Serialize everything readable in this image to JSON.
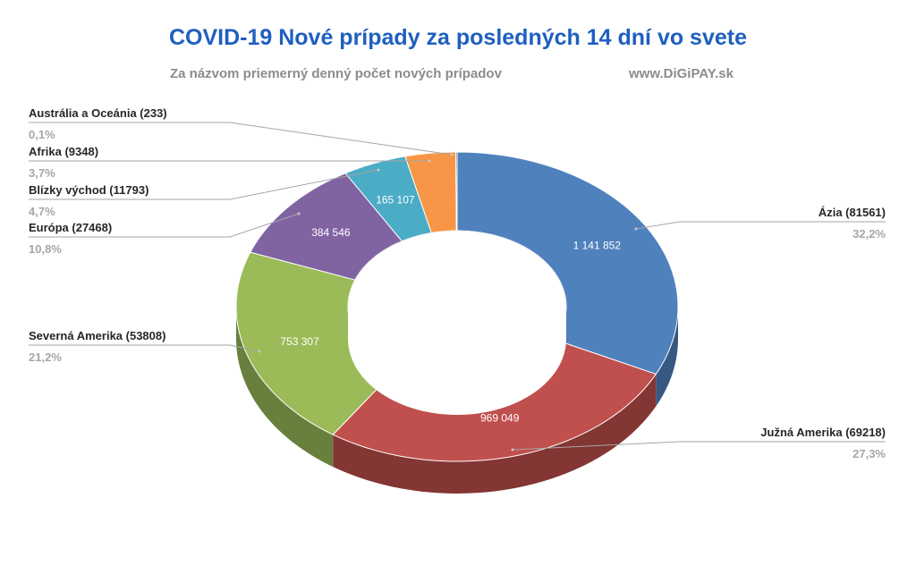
{
  "header": {
    "title": "COVID-19 Nové prípady za posledných 14 dní vo svete",
    "subtitle": "Za názvom priemerný denný počet nových prípadov",
    "source": "www.DiGiPAY.sk"
  },
  "chart_data": {
    "type": "pie",
    "variant": "3d-doughnut",
    "title": "COVID-19 Nové prípady za posledných 14 dní vo svete",
    "subtitle": "Za názvom priemerný denný počet nových prípadov",
    "series": [
      {
        "label": "Ázia (81561)",
        "value": 1141852,
        "value_label": "1 141 852",
        "percent_label": "32,2%",
        "color": "#4f81bd"
      },
      {
        "label": "Južná Amerika (69218)",
        "value": 969049,
        "value_label": "969 049",
        "percent_label": "27,3%",
        "color": "#c0504d"
      },
      {
        "label": "Severná Amerika (53808)",
        "value": 753307,
        "value_label": "753 307",
        "percent_label": "21,2%",
        "color": "#9bbb59"
      },
      {
        "label": "Európa (27468)",
        "value": 384546,
        "value_label": "384 546",
        "percent_label": "10,8%",
        "color": "#8064a2"
      },
      {
        "label": "Blízky východ (11793)",
        "value": 165107,
        "value_label": "165 107",
        "percent_label": "4,7%",
        "color": "#4bacc6"
      },
      {
        "label": "Afrika (9348)",
        "value": 130872,
        "value_label": "",
        "percent_label": "3,7%",
        "color": "#f79646"
      },
      {
        "label": "Austrália a Oceánia (233)",
        "value": 3262,
        "value_label": "",
        "percent_label": "0,1%",
        "color": "#2c4d75"
      }
    ]
  }
}
